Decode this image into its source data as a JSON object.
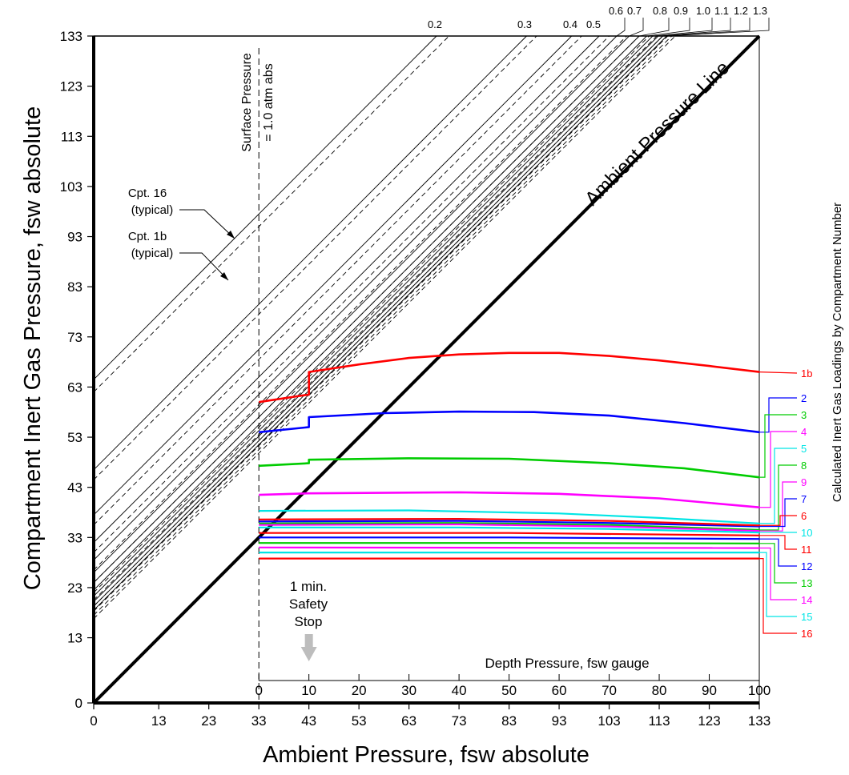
{
  "chart_data": {
    "type": "line",
    "xlabel": "Ambient Pressure, fsw absolute",
    "ylabel": "Compartment Inert Gas Pressure, fsw absolute",
    "right_label": "Calculated Inert Gas Loadings by Compartment Number",
    "depth_axis_label": "Depth Pressure, fsw gauge",
    "xlim": [
      0,
      133
    ],
    "ylim": [
      0,
      133
    ],
    "x_ticks": [
      "0",
      "13",
      "23",
      "33",
      "43",
      "53",
      "63",
      "73",
      "83",
      "93",
      "103",
      "113",
      "123",
      "133"
    ],
    "y_ticks": [
      "0",
      "13",
      "23",
      "33",
      "43",
      "53",
      "63",
      "73",
      "83",
      "93",
      "103",
      "113",
      "123",
      "133"
    ],
    "depth_ticks": [
      "0",
      "10",
      "20",
      "30",
      "40",
      "50",
      "60",
      "70",
      "80",
      "90",
      "100"
    ],
    "ambient_line_label": "Ambient Pressure Line",
    "surface_label_1": "Surface Pressure",
    "surface_label_2": "= 1.0 atm abs",
    "safety_stop_lines": [
      "1 min.",
      "Safety",
      "Stop"
    ],
    "cpt16_lines": [
      "Cpt. 16",
      "(typical)"
    ],
    "cpt1b_lines": [
      "Cpt. 1b",
      "(typical)"
    ],
    "gradient_factors": [
      "0.2",
      "0.3",
      "0.4",
      "0.5",
      "0.6",
      "0.7",
      "0.8",
      "0.9",
      "1.0",
      "1.1",
      "1.2",
      "1.3"
    ],
    "mvalue_lines": [
      {
        "gf": "0.2",
        "cpt16_intercept": 64.5,
        "cpt1b_intercept": 62.0
      },
      {
        "gf": "0.3",
        "cpt16_intercept": 46.5,
        "cpt1b_intercept": 44.5
      },
      {
        "gf": "0.4",
        "cpt16_intercept": 37.5,
        "cpt1b_intercept": 35.5
      },
      {
        "gf": "0.5",
        "cpt16_intercept": 32.0,
        "cpt1b_intercept": 30.0
      },
      {
        "gf": "0.6",
        "cpt16_intercept": 28.5,
        "cpt1b_intercept": 26.5
      },
      {
        "gf": "0.7",
        "cpt16_intercept": 26.0,
        "cpt1b_intercept": 24.0
      },
      {
        "gf": "0.8",
        "cpt16_intercept": 24.0,
        "cpt1b_intercept": 22.0
      },
      {
        "gf": "0.9",
        "cpt16_intercept": 22.5,
        "cpt1b_intercept": 20.5
      },
      {
        "gf": "1.0",
        "cpt16_intercept": 21.3,
        "cpt1b_intercept": 19.3
      },
      {
        "gf": "1.1",
        "cpt16_intercept": 20.2,
        "cpt1b_intercept": 18.3
      },
      {
        "gf": "1.2",
        "cpt16_intercept": 19.3,
        "cpt1b_intercept": 17.5
      },
      {
        "gf": "1.3",
        "cpt16_intercept": 18.5,
        "cpt1b_intercept": 16.8
      }
    ],
    "compartments": [
      {
        "name": "1b",
        "color": "#ff0000",
        "points": [
          [
            33,
            60
          ],
          [
            43,
            61.5
          ],
          [
            43,
            66
          ],
          [
            53,
            67.5
          ],
          [
            63,
            68.8
          ],
          [
            73,
            69.5
          ],
          [
            83,
            69.8
          ],
          [
            93,
            69.8
          ],
          [
            103,
            69.2
          ],
          [
            113,
            68.3
          ],
          [
            123,
            67.2
          ],
          [
            133,
            66
          ]
        ]
      },
      {
        "name": "2",
        "color": "#0000ff",
        "points": [
          [
            33,
            54
          ],
          [
            43,
            55
          ],
          [
            43,
            57
          ],
          [
            58,
            57.8
          ],
          [
            73,
            58.1
          ],
          [
            88,
            58
          ],
          [
            103,
            57.3
          ],
          [
            118,
            55.8
          ],
          [
            133,
            54
          ]
        ]
      },
      {
        "name": "3",
        "color": "#00cc00",
        "points": [
          [
            33,
            47.3
          ],
          [
            43,
            47.8
          ],
          [
            43,
            48.5
          ],
          [
            63,
            48.8
          ],
          [
            83,
            48.7
          ],
          [
            103,
            47.8
          ],
          [
            118,
            46.8
          ],
          [
            133,
            45
          ]
        ]
      },
      {
        "name": "4",
        "color": "#ff00ff",
        "points": [
          [
            33,
            41.5
          ],
          [
            43,
            41.8
          ],
          [
            73,
            42
          ],
          [
            93,
            41.7
          ],
          [
            113,
            40.8
          ],
          [
            133,
            39
          ]
        ]
      },
      {
        "name": "5",
        "color": "#00e5e5",
        "points": [
          [
            33,
            38.3
          ],
          [
            63,
            38.4
          ],
          [
            93,
            37.8
          ],
          [
            113,
            36.9
          ],
          [
            133,
            35.8
          ]
        ]
      },
      {
        "name": "8",
        "color": "#00cc00",
        "points": [
          [
            33,
            35.8
          ],
          [
            73,
            35.9
          ],
          [
            103,
            35.5
          ],
          [
            133,
            34.5
          ]
        ]
      },
      {
        "name": "9",
        "color": "#ff00ff",
        "points": [
          [
            33,
            35.5
          ],
          [
            73,
            35.6
          ],
          [
            103,
            35.2
          ],
          [
            133,
            34.3
          ]
        ]
      },
      {
        "name": "7",
        "color": "#0000ff",
        "points": [
          [
            33,
            36.2
          ],
          [
            73,
            36.3
          ],
          [
            103,
            35.9
          ],
          [
            133,
            35.2
          ]
        ]
      },
      {
        "name": "6",
        "color": "#ff0000",
        "points": [
          [
            33,
            36.6
          ],
          [
            73,
            36.7
          ],
          [
            103,
            36.3
          ],
          [
            133,
            35.4
          ]
        ]
      },
      {
        "name": "10",
        "color": "#00e5e5",
        "points": [
          [
            33,
            35
          ],
          [
            73,
            35
          ],
          [
            103,
            34.7
          ],
          [
            133,
            34
          ]
        ]
      },
      {
        "name": "11",
        "color": "#ff0000",
        "points": [
          [
            33,
            33.9
          ],
          [
            83,
            33.9
          ],
          [
            133,
            33.4
          ]
        ]
      },
      {
        "name": "12",
        "color": "#0000ff",
        "points": [
          [
            33,
            33
          ],
          [
            83,
            33
          ],
          [
            133,
            32.7
          ]
        ]
      },
      {
        "name": "13",
        "color": "#00cc00",
        "points": [
          [
            33,
            31.9
          ],
          [
            83,
            31.9
          ],
          [
            133,
            31.8
          ]
        ]
      },
      {
        "name": "14",
        "color": "#ff00ff",
        "points": [
          [
            33,
            31
          ],
          [
            133,
            30.9
          ]
        ]
      },
      {
        "name": "15",
        "color": "#00e5e5",
        "points": [
          [
            33,
            30
          ],
          [
            133,
            30
          ]
        ]
      },
      {
        "name": "16",
        "color": "#ff0000",
        "points": [
          [
            33,
            28.8
          ],
          [
            133,
            28.8
          ]
        ]
      }
    ],
    "grid": false,
    "legend": "right"
  }
}
